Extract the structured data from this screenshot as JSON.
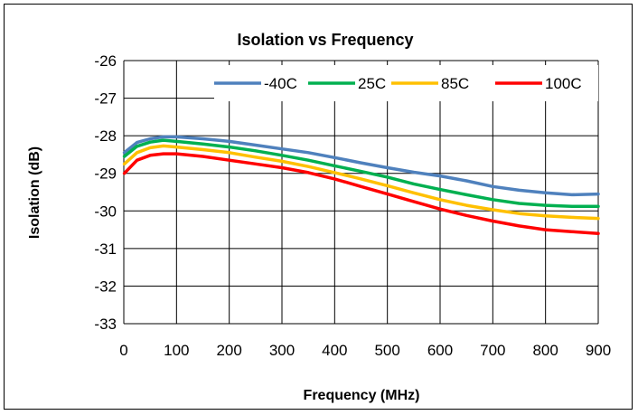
{
  "chart_data": {
    "type": "line",
    "title": "Isolation vs Frequency",
    "xlabel": "Frequency (MHz)",
    "ylabel": "Isolation  (dB)",
    "xlim": [
      0,
      900
    ],
    "ylim": [
      -33,
      -26
    ],
    "xticks": [
      0,
      100,
      200,
      300,
      400,
      500,
      600,
      700,
      800,
      900
    ],
    "yticks": [
      -26,
      -27,
      -28,
      -29,
      -30,
      -31,
      -32,
      -33
    ],
    "grid": true,
    "legend_position": "top-right",
    "x": [
      1,
      25,
      50,
      75,
      100,
      150,
      200,
      250,
      300,
      350,
      400,
      450,
      500,
      550,
      600,
      650,
      700,
      750,
      800,
      850,
      900
    ],
    "series": [
      {
        "name": "-40C",
        "color": "#4F81BD",
        "values": [
          -28.45,
          -28.18,
          -28.08,
          -28.03,
          -28.03,
          -28.08,
          -28.15,
          -28.25,
          -28.35,
          -28.45,
          -28.58,
          -28.72,
          -28.85,
          -28.97,
          -29.07,
          -29.2,
          -29.35,
          -29.45,
          -29.52,
          -29.57,
          -29.55
        ]
      },
      {
        "name": "25C",
        "color": "#00B050",
        "values": [
          -28.55,
          -28.28,
          -28.17,
          -28.12,
          -28.15,
          -28.22,
          -28.3,
          -28.4,
          -28.52,
          -28.65,
          -28.8,
          -28.95,
          -29.1,
          -29.28,
          -29.43,
          -29.57,
          -29.7,
          -29.8,
          -29.85,
          -29.88,
          -29.88
        ]
      },
      {
        "name": "85C",
        "color": "#FFC000",
        "values": [
          -28.75,
          -28.45,
          -28.32,
          -28.27,
          -28.3,
          -28.37,
          -28.45,
          -28.57,
          -28.68,
          -28.82,
          -28.98,
          -29.15,
          -29.33,
          -29.52,
          -29.7,
          -29.85,
          -29.97,
          -30.07,
          -30.13,
          -30.17,
          -30.2
        ]
      },
      {
        "name": "100C",
        "color": "#FF0000",
        "values": [
          -29.0,
          -28.65,
          -28.52,
          -28.48,
          -28.48,
          -28.55,
          -28.65,
          -28.75,
          -28.85,
          -28.98,
          -29.15,
          -29.35,
          -29.55,
          -29.75,
          -29.95,
          -30.12,
          -30.27,
          -30.4,
          -30.5,
          -30.55,
          -30.6
        ]
      }
    ]
  }
}
